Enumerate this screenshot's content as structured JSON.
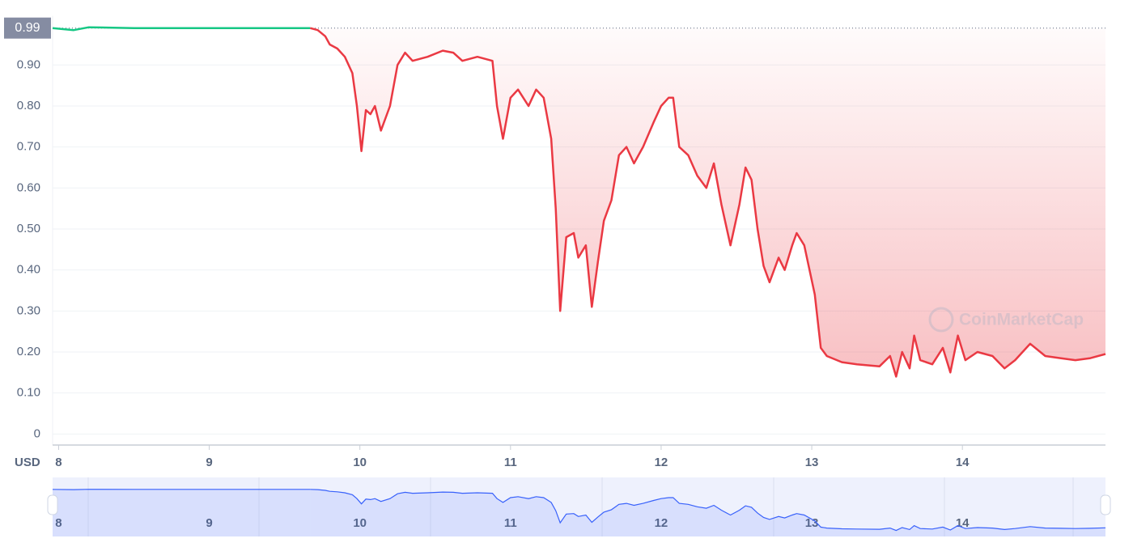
{
  "chart_data": {
    "type": "line",
    "unit_label": "USD",
    "watermark": "CoinMarketCap",
    "reference": 0.99,
    "xlim": [
      7.96,
      14.95
    ],
    "xticks": [
      8,
      9,
      10,
      11,
      12,
      13,
      14
    ],
    "ylim": [
      -0.027,
      1.02
    ],
    "yticks": [
      0,
      {
        "value": 0.1,
        "label": "0.10"
      },
      {
        "value": 0.2,
        "label": "0.20"
      },
      {
        "value": 0.3,
        "label": "0.30"
      },
      {
        "value": 0.4,
        "label": "0.40"
      },
      {
        "value": 0.5,
        "label": "0.50"
      },
      {
        "value": 0.6,
        "label": "0.60"
      },
      {
        "value": 0.7,
        "label": "0.70"
      },
      {
        "value": 0.8,
        "label": "0.80"
      },
      {
        "value": 0.9,
        "label": "0.90"
      }
    ],
    "grid": true,
    "navigator_color": "#3861fb",
    "series": [
      {
        "color": "#16c784",
        "x": [
          7.96,
          8.1,
          8.2,
          8.5,
          8.8,
          9.2,
          9.5,
          9.67
        ],
        "values": [
          0.99,
          0.985,
          0.992,
          0.99,
          0.99,
          0.99,
          0.99,
          0.99
        ]
      },
      {
        "color": "#ea3943",
        "fill": "#ea3943",
        "x": [
          9.67,
          9.72,
          9.77,
          9.8,
          9.85,
          9.9,
          9.95,
          9.98,
          10.01,
          10.04,
          10.07,
          10.1,
          10.14,
          10.2,
          10.25,
          10.3,
          10.35,
          10.45,
          10.55,
          10.62,
          10.68,
          10.78,
          10.88,
          10.91,
          10.95,
          11.0,
          11.05,
          11.12,
          11.17,
          11.22,
          11.27,
          11.3,
          11.33,
          11.37,
          11.42,
          11.45,
          11.5,
          11.54,
          11.58,
          11.62,
          11.67,
          11.72,
          11.77,
          11.82,
          11.88,
          11.95,
          12.0,
          12.05,
          12.08,
          12.12,
          12.18,
          12.24,
          12.3,
          12.35,
          12.4,
          12.46,
          12.52,
          12.56,
          12.6,
          12.64,
          12.68,
          12.72,
          12.78,
          12.82,
          12.87,
          12.9,
          12.95,
          13.02,
          13.06,
          13.1,
          13.2,
          13.3,
          13.45,
          13.52,
          13.56,
          13.6,
          13.65,
          13.68,
          13.72,
          13.8,
          13.87,
          13.92,
          13.97,
          14.02,
          14.1,
          14.2,
          14.28,
          14.35,
          14.45,
          14.55,
          14.65,
          14.75,
          14.85,
          14.95
        ],
        "values": [
          0.99,
          0.985,
          0.97,
          0.95,
          0.94,
          0.92,
          0.88,
          0.8,
          0.69,
          0.79,
          0.78,
          0.8,
          0.74,
          0.8,
          0.9,
          0.93,
          0.91,
          0.92,
          0.935,
          0.93,
          0.91,
          0.92,
          0.91,
          0.8,
          0.72,
          0.82,
          0.84,
          0.8,
          0.84,
          0.82,
          0.72,
          0.55,
          0.3,
          0.48,
          0.49,
          0.43,
          0.46,
          0.31,
          0.42,
          0.52,
          0.57,
          0.68,
          0.7,
          0.66,
          0.7,
          0.76,
          0.8,
          0.82,
          0.82,
          0.7,
          0.68,
          0.63,
          0.6,
          0.66,
          0.56,
          0.46,
          0.56,
          0.65,
          0.62,
          0.5,
          0.41,
          0.37,
          0.43,
          0.4,
          0.46,
          0.49,
          0.46,
          0.34,
          0.21,
          0.19,
          0.175,
          0.17,
          0.165,
          0.19,
          0.14,
          0.2,
          0.16,
          0.24,
          0.18,
          0.17,
          0.21,
          0.15,
          0.24,
          0.18,
          0.2,
          0.19,
          0.16,
          0.18,
          0.22,
          0.19,
          0.185,
          0.18,
          0.185,
          0.195
        ]
      }
    ]
  }
}
